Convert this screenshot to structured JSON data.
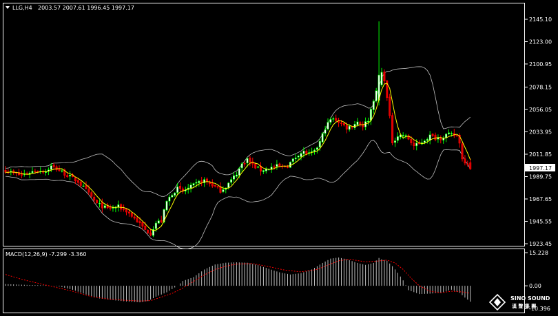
{
  "header": {
    "symbol_tf": "LLG,H4",
    "ohlc": "2003.57 2007.61 1996.45 1997.17",
    "current_price": "1997.17"
  },
  "watermark": {
    "brand_en": "SINO SOUND",
    "brand_cn": "漢 聲 集 團"
  },
  "colors": {
    "background": "#000000",
    "frame": "#ffffff",
    "bull": "#00ff00",
    "bear": "#ff0000",
    "bull_body": "#ffffff",
    "bear_body": "#dd0000",
    "ma": "#ffff00",
    "bands": "#c0c0c0",
    "macd_hist": "#c0c0c0",
    "macd_signal": "#ff0000"
  },
  "chart_data": [
    {
      "type": "candlestick",
      "title": "LLG,H4",
      "y_ticks": [
        "2145.10",
        "2123.00",
        "2100.95",
        "2078.15",
        "2056.05",
        "2033.95",
        "2011.85",
        "1989.75",
        "1967.65",
        "1945.55",
        "1923.45"
      ],
      "ylim": [
        1923.45,
        2145.1
      ],
      "overlays": [
        "Bollinger Bands",
        "Moving Average"
      ],
      "anchors": [
        [
          0,
          1996
        ],
        [
          3,
          1993
        ],
        [
          6,
          1991
        ],
        [
          9,
          1994
        ],
        [
          12,
          1996
        ],
        [
          15,
          1995
        ],
        [
          17,
          2000
        ],
        [
          20,
          1996
        ],
        [
          23,
          1991
        ],
        [
          27,
          1985
        ],
        [
          30,
          1976
        ],
        [
          34,
          1963
        ],
        [
          38,
          1958
        ],
        [
          42,
          1960
        ],
        [
          45,
          1956
        ],
        [
          49,
          1946
        ],
        [
          52,
          1937
        ],
        [
          54,
          1934
        ],
        [
          56,
          1944
        ],
        [
          58,
          1946
        ],
        [
          60,
          1965
        ],
        [
          62,
          1973
        ],
        [
          64,
          1978
        ],
        [
          66,
          1975
        ],
        [
          68,
          1978
        ],
        [
          70,
          1981
        ],
        [
          72,
          1984
        ],
        [
          74,
          1986
        ],
        [
          76,
          1983
        ],
        [
          78,
          1980
        ],
        [
          80,
          1976
        ],
        [
          82,
          1980
        ],
        [
          84,
          1986
        ],
        [
          86,
          1993
        ],
        [
          88,
          2002
        ],
        [
          90,
          2007
        ],
        [
          92,
          2001
        ],
        [
          95,
          1996
        ],
        [
          98,
          1998
        ],
        [
          101,
          2000
        ],
        [
          103,
          1999
        ],
        [
          105,
          2001
        ],
        [
          107,
          2006
        ],
        [
          109,
          2012
        ],
        [
          111,
          2014
        ],
        [
          113,
          2012
        ],
        [
          115,
          2014
        ],
        [
          117,
          2024
        ],
        [
          119,
          2038
        ],
        [
          121,
          2046
        ],
        [
          123,
          2046
        ],
        [
          125,
          2042
        ],
        [
          127,
          2038
        ],
        [
          129,
          2040
        ],
        [
          131,
          2044
        ],
        [
          133,
          2040
        ],
        [
          135,
          2046
        ],
        [
          137,
          2066
        ],
        [
          139,
          2080
        ],
        [
          140,
          2092
        ],
        [
          141,
          2086
        ],
        [
          142,
          2067
        ],
        [
          143,
          2048
        ],
        [
          144,
          2024
        ],
        [
          146,
          2030
        ],
        [
          148,
          2031
        ],
        [
          150,
          2027
        ],
        [
          152,
          2020
        ],
        [
          154,
          2022
        ],
        [
          156,
          2026
        ],
        [
          158,
          2030
        ],
        [
          160,
          2028
        ],
        [
          162,
          2028
        ],
        [
          164,
          2031
        ],
        [
          166,
          2031
        ],
        [
          168,
          2030
        ],
        [
          169,
          2024
        ],
        [
          170,
          2007
        ],
        [
          172,
          2003
        ],
        [
          173,
          1997
        ]
      ],
      "spikes": [
        {
          "x": 139,
          "high": 2143,
          "low": 2060
        }
      ]
    },
    {
      "type": "macd",
      "title": "MACD(12,26,9)",
      "label": "MACD(12,26,9) -7.299 -3.360",
      "y_ticks": [
        "15.228",
        "0.00",
        "-10.396"
      ],
      "ylim": [
        -10.396,
        15.228
      ],
      "hist_anchors": [
        [
          0,
          0.8
        ],
        [
          8,
          0.4
        ],
        [
          15,
          0.2
        ],
        [
          20,
          -0.3
        ],
        [
          25,
          -1.8
        ],
        [
          30,
          -4.0
        ],
        [
          35,
          -5.8
        ],
        [
          40,
          -6.6
        ],
        [
          45,
          -7.2
        ],
        [
          50,
          -7.6
        ],
        [
          53,
          -7.0
        ],
        [
          56,
          -5.0
        ],
        [
          60,
          -3.0
        ],
        [
          64,
          0.0
        ],
        [
          66,
          2.2
        ],
        [
          70,
          4.0
        ],
        [
          74,
          7.5
        ],
        [
          78,
          9.8
        ],
        [
          82,
          10.6
        ],
        [
          86,
          10.8
        ],
        [
          90,
          10.6
        ],
        [
          94,
          9.5
        ],
        [
          98,
          7.8
        ],
        [
          102,
          6.2
        ],
        [
          106,
          5.2
        ],
        [
          110,
          5.8
        ],
        [
          114,
          7.5
        ],
        [
          118,
          10.5
        ],
        [
          121,
          12.5
        ],
        [
          124,
          13.0
        ],
        [
          127,
          12.2
        ],
        [
          131,
          10.5
        ],
        [
          134,
          9.6
        ],
        [
          137,
          10.5
        ],
        [
          139,
          12.8
        ],
        [
          140,
          12.2
        ],
        [
          142,
          11.5
        ],
        [
          144,
          9.0
        ],
        [
          146,
          6.0
        ],
        [
          148,
          2.5
        ],
        [
          150,
          -2.0
        ],
        [
          154,
          -3.8
        ],
        [
          158,
          -3.6
        ],
        [
          162,
          -3.2
        ],
        [
          166,
          -1.8
        ],
        [
          169,
          -3.2
        ],
        [
          171,
          -5.4
        ],
        [
          173,
          -7.3
        ]
      ],
      "signal_anchors": [
        [
          0,
          5.2
        ],
        [
          6,
          3.0
        ],
        [
          12,
          1.2
        ],
        [
          18,
          -0.5
        ],
        [
          25,
          -2.5
        ],
        [
          32,
          -5.0
        ],
        [
          38,
          -6.0
        ],
        [
          44,
          -6.6
        ],
        [
          50,
          -7.0
        ],
        [
          54,
          -6.8
        ],
        [
          58,
          -5.2
        ],
        [
          62,
          -3.5
        ],
        [
          66,
          -1.0
        ],
        [
          70,
          2.0
        ],
        [
          74,
          5.0
        ],
        [
          78,
          7.5
        ],
        [
          82,
          9.0
        ],
        [
          86,
          10.0
        ],
        [
          92,
          10.2
        ],
        [
          98,
          8.8
        ],
        [
          104,
          7.2
        ],
        [
          110,
          6.4
        ],
        [
          116,
          7.5
        ],
        [
          120,
          9.5
        ],
        [
          124,
          11.5
        ],
        [
          128,
          12.2
        ],
        [
          134,
          11.0
        ],
        [
          138,
          11.3
        ],
        [
          142,
          11.8
        ],
        [
          145,
          10.5
        ],
        [
          148,
          7.5
        ],
        [
          151,
          3.5
        ],
        [
          154,
          0.0
        ],
        [
          158,
          -2.5
        ],
        [
          162,
          -3.2
        ],
        [
          166,
          -2.5
        ],
        [
          170,
          -2.8
        ],
        [
          173,
          -3.4
        ]
      ]
    }
  ]
}
